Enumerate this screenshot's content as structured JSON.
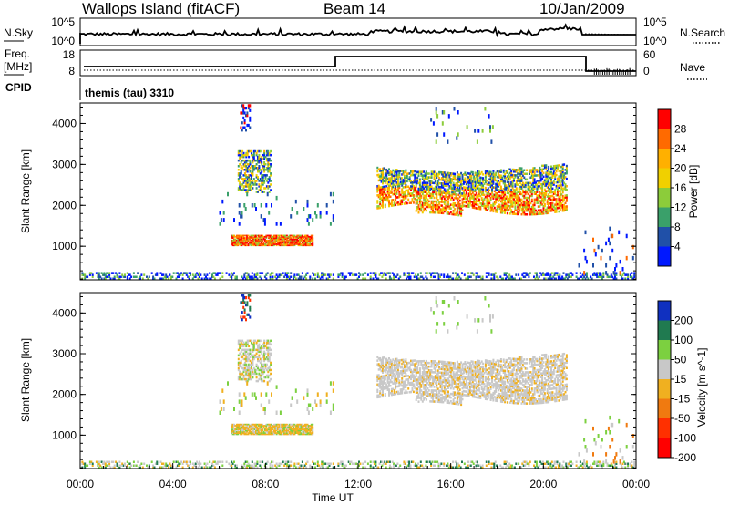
{
  "header": {
    "site": "Wallops Island (fitACF)",
    "beam": "Beam 14",
    "date": "10/Jan/2009"
  },
  "noise_panel": {
    "left_label": "N.Sky",
    "left_ticks": [
      "10^5",
      "10^0"
    ],
    "right_label": "N.Search",
    "right_ticks": [
      "10^5",
      "10^0"
    ]
  },
  "freq_panel": {
    "left_label_1": "Freq.",
    "left_label_2": "[MHz]",
    "left_ticks": [
      "18",
      "8"
    ],
    "right_label": "Nave",
    "right_ticks": [
      "60",
      "0"
    ]
  },
  "cpid_panel": {
    "label": "CPID",
    "program": "themis (tau) 3310"
  },
  "chart_data": [
    {
      "type": "heatmap",
      "name": "power",
      "ylabel": "Slant Range [km]",
      "yticks": [
        "4000",
        "3000",
        "2000",
        "1000"
      ],
      "ylim": [
        180,
        4500
      ],
      "colorbar_label": "Power [dB]",
      "colorbar_ticks": [
        "28",
        "24",
        "20",
        "16",
        "12",
        "8",
        "4"
      ],
      "colorbar_colors": [
        "#ff0000",
        "#ff6a00",
        "#ffb000",
        "#f0d000",
        "#8ccc3a",
        "#3aa06a",
        "#2050a8",
        "#0018ff"
      ],
      "echo_regions": [
        {
          "t0": 6.8,
          "t1": 8.2,
          "r0": 2300,
          "r1": 3300,
          "dominant": "green-yellow"
        },
        {
          "t0": 6.5,
          "t1": 10.0,
          "r0": 1000,
          "r1": 1250,
          "dominant": "red"
        },
        {
          "t0": 12.8,
          "t1": 21.0,
          "r0": 1800,
          "r1": 3000,
          "dominant": "orange-green"
        },
        {
          "t0": 0.0,
          "t1": 24.0,
          "r0": 180,
          "r1": 300,
          "dominant": "blue"
        }
      ]
    },
    {
      "type": "heatmap",
      "name": "velocity",
      "xlabel": "Time UT",
      "xticks": [
        "00:00",
        "04:00",
        "08:00",
        "12:00",
        "16:00",
        "20:00",
        "00:00"
      ],
      "ylabel": "Slant Range [km]",
      "yticks": [
        "4000",
        "3000",
        "2000",
        "1000"
      ],
      "ylim": [
        180,
        4500
      ],
      "colorbar_label": "Velocity [m s^-1]",
      "colorbar_ticks": [
        "200",
        "100",
        "50",
        "15",
        "-15",
        "-50",
        "-100",
        "-200"
      ],
      "colorbar_colors": [
        "#1030c0",
        "#207a50",
        "#7cd040",
        "#c8c8c8",
        "#f0b020",
        "#f07a10",
        "#ff3000",
        "#ff0000"
      ],
      "echo_regions": [
        {
          "t0": 6.8,
          "t1": 8.2,
          "r0": 2300,
          "r1": 3300,
          "dominant": "grey"
        },
        {
          "t0": 6.5,
          "t1": 10.0,
          "r0": 1000,
          "r1": 1250,
          "dominant": "orange"
        },
        {
          "t0": 12.8,
          "t1": 21.0,
          "r0": 1800,
          "r1": 3000,
          "dominant": "grey"
        },
        {
          "t0": 0.0,
          "t1": 24.0,
          "r0": 180,
          "r1": 300,
          "dominant": "green-orange"
        }
      ]
    }
  ]
}
